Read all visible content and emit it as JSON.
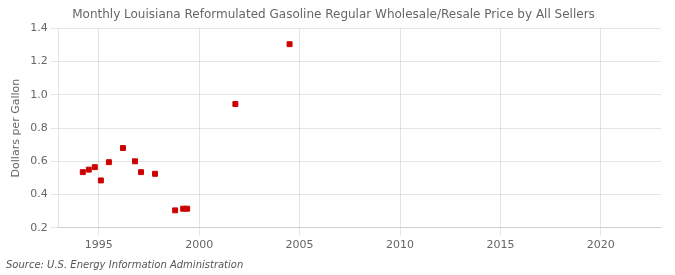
{
  "chart_data": {
    "type": "scatter",
    "title": "Monthly Louisiana Reformulated Gasoline Regular Wholesale/Resale Price by All Sellers",
    "y_label": "Dollars per Gallon",
    "annotations": [
      "Source: U.S. Energy Information Administration"
    ],
    "x": [
      1994.2,
      1994.5,
      1994.8,
      1995.1,
      1995.5,
      1996.2,
      1996.8,
      1997.1,
      1997.8,
      1998.8,
      1999.2,
      1999.4,
      2001.8,
      2004.5
    ],
    "values": [
      0.535,
      0.55,
      0.565,
      0.485,
      0.595,
      0.68,
      0.6,
      0.535,
      0.525,
      0.305,
      0.315,
      0.315,
      0.945,
      1.305
    ],
    "color": "#cc0000",
    "marker": "square",
    "xlim": [
      1993,
      2023
    ],
    "xticks": [
      1995,
      2000,
      2005,
      2010,
      2015,
      2020
    ],
    "ylim": [
      0.2,
      1.4
    ],
    "yticks": [
      0.2,
      0.4,
      0.6,
      0.8,
      {
        "value": 1.0,
        "label": "1.0"
      },
      1.2,
      1.4
    ],
    "grid": true
  }
}
